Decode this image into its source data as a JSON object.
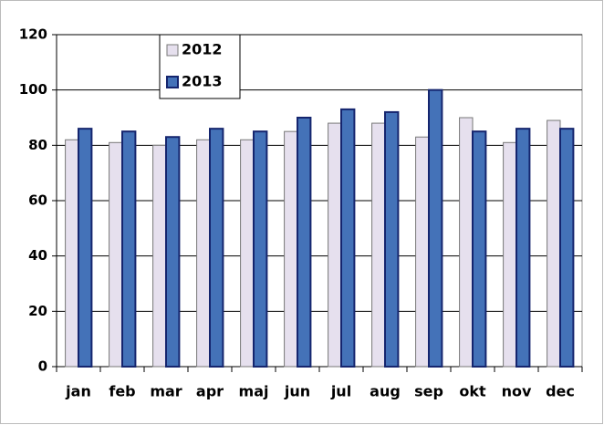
{
  "chart_data": {
    "type": "bar",
    "categories": [
      "jan",
      "feb",
      "mar",
      "apr",
      "maj",
      "jun",
      "jul",
      "aug",
      "sep",
      "okt",
      "nov",
      "dec"
    ],
    "series": [
      {
        "name": "2012",
        "color": "#e6e0ee",
        "values": [
          82,
          81,
          80,
          82,
          82,
          85,
          88,
          88,
          83,
          90,
          81,
          89
        ]
      },
      {
        "name": "2013",
        "color": "#4472b8",
        "values": [
          86,
          85,
          83,
          86,
          85,
          90,
          93,
          92,
          100,
          85,
          86,
          86
        ]
      }
    ],
    "ylim": [
      0,
      120
    ],
    "yticks": [
      0,
      20,
      40,
      60,
      80,
      100,
      120
    ],
    "grid": true,
    "legend": "top-left"
  }
}
